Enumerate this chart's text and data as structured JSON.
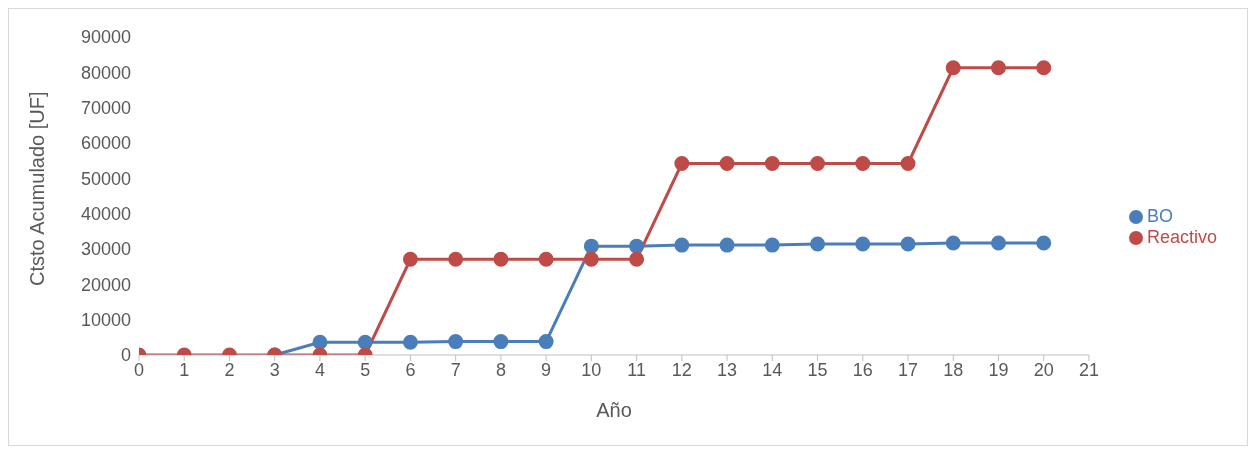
{
  "chart_data": {
    "type": "line",
    "xlabel": "Año",
    "ylabel": "Ctsto Acumulado [UF]",
    "x": [
      0,
      1,
      2,
      3,
      4,
      5,
      6,
      7,
      8,
      9,
      10,
      11,
      12,
      13,
      14,
      15,
      16,
      17,
      18,
      19,
      20
    ],
    "series": [
      {
        "name": "BO",
        "color": "#4a7ebb",
        "values": [
          null,
          null,
          null,
          0,
          3600,
          3600,
          3600,
          3800,
          3800,
          3800,
          30800,
          30800,
          31100,
          31100,
          31100,
          31400,
          31400,
          31400,
          31700,
          31700,
          31700
        ]
      },
      {
        "name": "Reactivo",
        "color": "#be4b48",
        "values": [
          0,
          0,
          0,
          0,
          0,
          0,
          27100,
          27100,
          27100,
          27100,
          27100,
          27100,
          54200,
          54200,
          54200,
          54200,
          54200,
          54200,
          81300,
          81300,
          81300
        ]
      }
    ],
    "xlim": [
      0,
      21
    ],
    "xticks": [
      0,
      1,
      2,
      3,
      4,
      5,
      6,
      7,
      8,
      9,
      10,
      11,
      12,
      13,
      14,
      15,
      16,
      17,
      18,
      19,
      20,
      21
    ],
    "ylim": [
      0,
      90000
    ],
    "yticks": [
      0,
      10000,
      20000,
      30000,
      40000,
      50000,
      60000,
      70000,
      80000,
      90000
    ],
    "grid": false,
    "legend": "right",
    "marker": "circle",
    "line_style": "solid"
  }
}
